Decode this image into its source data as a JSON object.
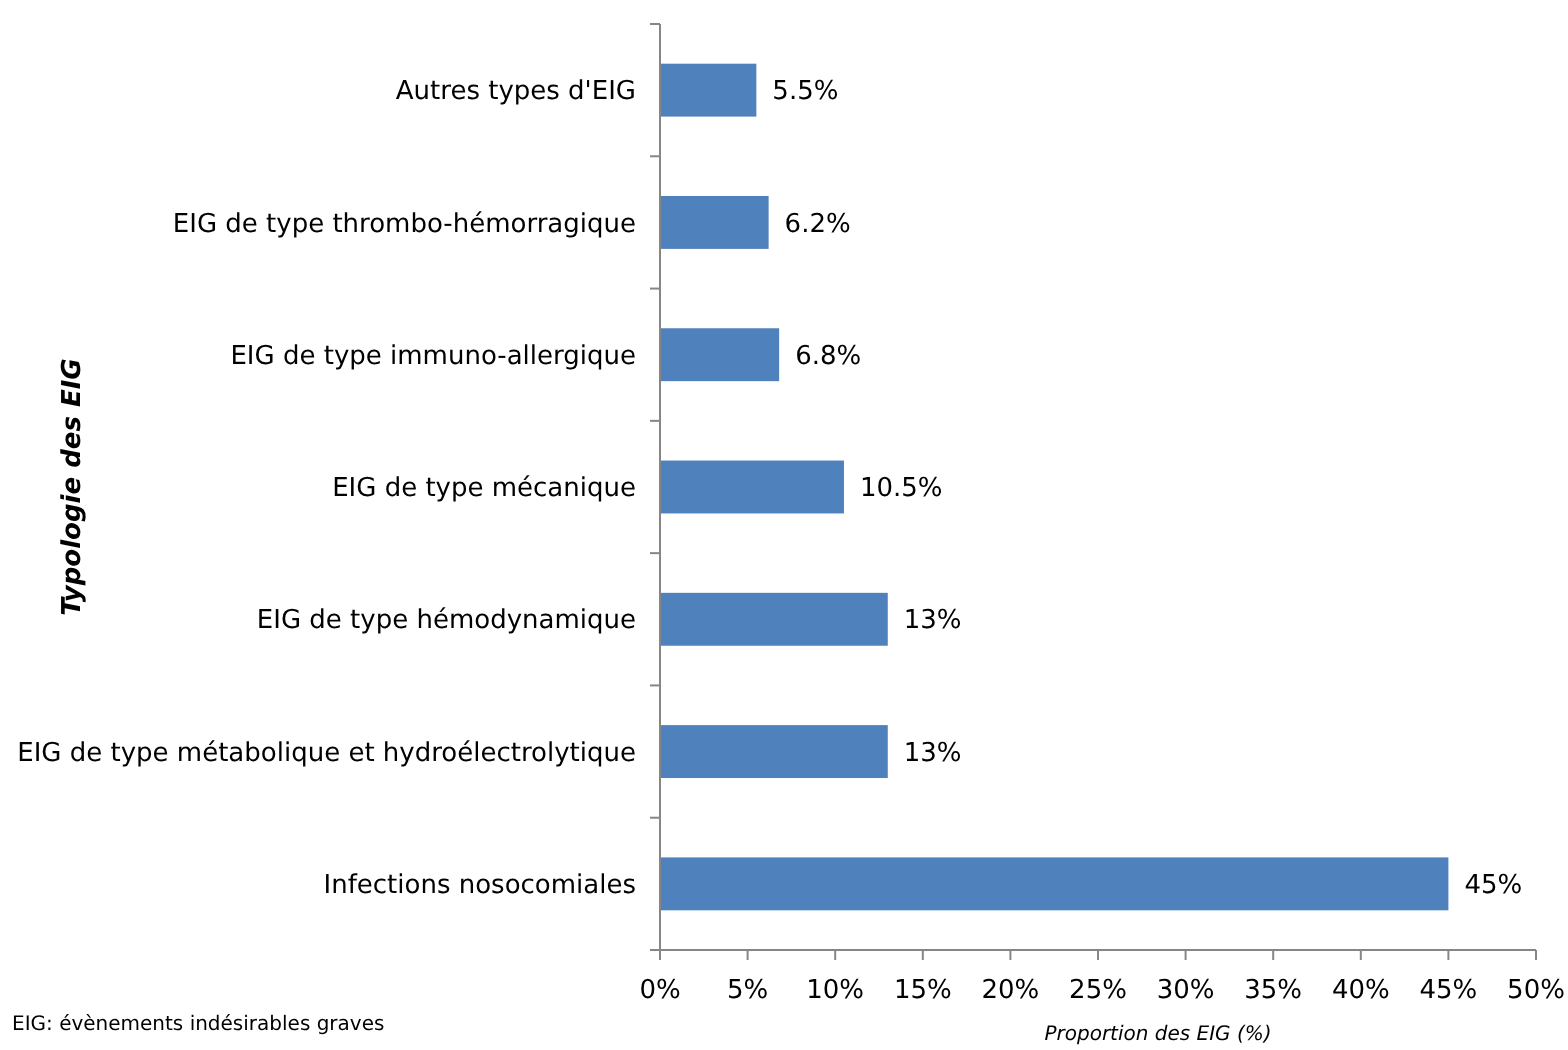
{
  "chart_data": {
    "type": "bar",
    "orientation": "horizontal",
    "categories": [
      "Autres types d'EIG",
      "EIG de type thrombo-hémorragique",
      "EIG de type immuno-allergique",
      "EIG de type mécanique",
      "EIG de type hémodynamique",
      "EIG de type métabolique et hydroélectrolytique",
      "Infections nosocomiales"
    ],
    "values": [
      5.5,
      6.2,
      6.8,
      10.5,
      13,
      13,
      45
    ],
    "value_labels": [
      "5.5%",
      "6.2%",
      "6.8%",
      "10.5%",
      "13%",
      "13%",
      "45%"
    ],
    "color": "#4f81bd",
    "xlim": [
      0,
      50
    ],
    "xticks": [
      {
        "value": 0,
        "label": "0%"
      },
      {
        "value": 5,
        "label": "5%"
      },
      {
        "value": 10,
        "label": "10%"
      },
      {
        "value": 15,
        "label": "15%"
      },
      {
        "value": 20,
        "label": "20%"
      },
      {
        "value": 25,
        "label": "25%"
      },
      {
        "value": 30,
        "label": "30%"
      },
      {
        "value": 35,
        "label": "35%"
      },
      {
        "value": 40,
        "label": "40%"
      },
      {
        "value": 45,
        "label": "45%"
      },
      {
        "value": 50,
        "label": "50%"
      }
    ],
    "xlabel": "Proportion des EIG (%)",
    "ylabel": "Typologie des EIG",
    "annotations": [
      "EIG: évènements indésirables graves"
    ],
    "grid": false
  }
}
